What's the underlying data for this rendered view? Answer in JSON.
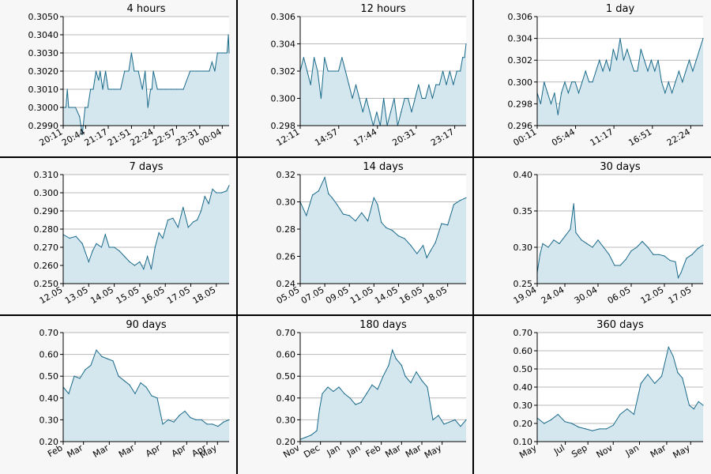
{
  "colors": {
    "line": "#1a6a8a",
    "fill": "#d4e6ee",
    "grid": "#b8b8b8",
    "axis": "#000000",
    "panel_bg": "#f7f7f7",
    "plot_bg": "#ffffff"
  },
  "chart_data": [
    {
      "type": "area",
      "title": "4 hours",
      "ylim": [
        0.299,
        0.305
      ],
      "yticks": [
        0.299,
        0.3,
        0.301,
        0.302,
        0.303,
        0.304,
        0.305
      ],
      "ytick_labels": [
        "0.2990",
        "0.3000",
        "0.3010",
        "0.3020",
        "0.3030",
        "0.3040",
        "0.3050"
      ],
      "xlim": [
        0,
        243
      ],
      "xticks": [
        0,
        33,
        66,
        100,
        133,
        166,
        200,
        233
      ],
      "xtick_labels": [
        "20:11",
        "20:44",
        "21:17",
        "21:51",
        "22:24",
        "22:57",
        "23:31",
        "00:04"
      ],
      "x": [
        0,
        4,
        6,
        8,
        12,
        18,
        24,
        28,
        32,
        36,
        40,
        44,
        46,
        48,
        52,
        54,
        56,
        58,
        62,
        64,
        66,
        70,
        76,
        84,
        90,
        96,
        100,
        104,
        110,
        116,
        120,
        124,
        128,
        130,
        132,
        138,
        144,
        150,
        158,
        166,
        176,
        186,
        196,
        206,
        214,
        218,
        222,
        226,
        232,
        236,
        240,
        242,
        243
      ],
      "values": [
        0.3,
        0.3,
        0.301,
        0.3,
        0.3,
        0.3,
        0.2995,
        0.2985,
        0.3,
        0.3,
        0.301,
        0.301,
        0.3015,
        0.302,
        0.3015,
        0.302,
        0.3015,
        0.301,
        0.302,
        0.3015,
        0.301,
        0.301,
        0.301,
        0.301,
        0.302,
        0.302,
        0.303,
        0.302,
        0.302,
        0.301,
        0.302,
        0.3,
        0.301,
        0.301,
        0.302,
        0.301,
        0.301,
        0.301,
        0.301,
        0.301,
        0.301,
        0.302,
        0.302,
        0.302,
        0.302,
        0.3025,
        0.302,
        0.303,
        0.303,
        0.303,
        0.303,
        0.304,
        0.303
      ]
    },
    {
      "type": "area",
      "title": "12 hours",
      "ylim": [
        0.298,
        0.306
      ],
      "yticks": [
        0.298,
        0.3,
        0.302,
        0.304,
        0.306
      ],
      "ytick_labels": [
        "0.298",
        "0.300",
        "0.302",
        "0.304",
        "0.306"
      ],
      "xlim": [
        0,
        715
      ],
      "xticks": [
        0,
        166,
        333,
        500,
        666
      ],
      "xtick_labels": [
        "12:11",
        "14:57",
        "17:44",
        "20:31",
        "23:17"
      ],
      "x": [
        0,
        15,
        30,
        45,
        60,
        75,
        90,
        105,
        120,
        135,
        150,
        165,
        180,
        195,
        210,
        225,
        240,
        255,
        270,
        285,
        300,
        315,
        330,
        345,
        360,
        375,
        390,
        405,
        420,
        435,
        450,
        465,
        480,
        495,
        510,
        525,
        540,
        555,
        570,
        585,
        600,
        615,
        630,
        645,
        660,
        675,
        690,
        700,
        708,
        715
      ],
      "values": [
        0.302,
        0.303,
        0.302,
        0.301,
        0.303,
        0.302,
        0.3,
        0.303,
        0.302,
        0.302,
        0.302,
        0.302,
        0.303,
        0.302,
        0.301,
        0.3,
        0.301,
        0.3,
        0.299,
        0.3,
        0.299,
        0.298,
        0.299,
        0.298,
        0.3,
        0.298,
        0.299,
        0.3,
        0.298,
        0.299,
        0.3,
        0.3,
        0.299,
        0.3,
        0.301,
        0.3,
        0.3,
        0.301,
        0.3,
        0.301,
        0.301,
        0.302,
        0.301,
        0.302,
        0.301,
        0.302,
        0.302,
        0.303,
        0.303,
        0.304
      ]
    },
    {
      "type": "area",
      "title": "1 day",
      "ylim": [
        0.296,
        0.306
      ],
      "yticks": [
        0.296,
        0.298,
        0.3,
        0.302,
        0.304,
        0.306
      ],
      "ytick_labels": [
        "0.296",
        "0.298",
        "0.300",
        "0.302",
        "0.304",
        "0.306"
      ],
      "xlim": [
        0,
        1440
      ],
      "xticks": [
        0,
        333,
        666,
        1000,
        1333
      ],
      "xtick_labels": [
        "00:11",
        "05:44",
        "11:17",
        "16:51",
        "22:24"
      ],
      "x": [
        0,
        30,
        60,
        90,
        120,
        150,
        180,
        210,
        240,
        270,
        300,
        330,
        360,
        390,
        420,
        450,
        480,
        510,
        540,
        570,
        600,
        630,
        660,
        690,
        720,
        750,
        780,
        810,
        840,
        870,
        900,
        930,
        960,
        990,
        1020,
        1050,
        1080,
        1110,
        1140,
        1170,
        1200,
        1230,
        1260,
        1290,
        1320,
        1350,
        1380,
        1410,
        1440
      ],
      "values": [
        0.299,
        0.298,
        0.3,
        0.299,
        0.298,
        0.299,
        0.297,
        0.299,
        0.3,
        0.299,
        0.3,
        0.3,
        0.299,
        0.3,
        0.301,
        0.3,
        0.3,
        0.301,
        0.302,
        0.301,
        0.302,
        0.301,
        0.303,
        0.302,
        0.304,
        0.302,
        0.303,
        0.302,
        0.301,
        0.301,
        0.303,
        0.302,
        0.301,
        0.302,
        0.301,
        0.302,
        0.3,
        0.299,
        0.3,
        0.299,
        0.3,
        0.301,
        0.3,
        0.301,
        0.302,
        0.301,
        0.302,
        0.303,
        0.304
      ]
    },
    {
      "type": "area",
      "title": "7 days",
      "ylim": [
        0.25,
        0.31
      ],
      "yticks": [
        0.25,
        0.26,
        0.27,
        0.28,
        0.29,
        0.3,
        0.31
      ],
      "ytick_labels": [
        "0.250",
        "0.260",
        "0.270",
        "0.280",
        "0.290",
        "0.300",
        "0.310"
      ],
      "xlim": [
        0,
        6.5
      ],
      "xticks": [
        0,
        1,
        2,
        3,
        4,
        5,
        6
      ],
      "xtick_labels": [
        "12.05",
        "13.05",
        "14.05",
        "15.05",
        "16.05",
        "17.05",
        "18.05"
      ],
      "x": [
        0,
        0.25,
        0.5,
        0.75,
        1.0,
        1.15,
        1.3,
        1.5,
        1.65,
        1.8,
        2.0,
        2.2,
        2.4,
        2.6,
        2.8,
        3.0,
        3.15,
        3.3,
        3.45,
        3.6,
        3.75,
        3.9,
        4.1,
        4.3,
        4.5,
        4.7,
        4.9,
        5.1,
        5.25,
        5.4,
        5.55,
        5.7,
        5.85,
        6.0,
        6.2,
        6.4,
        6.5
      ],
      "values": [
        0.277,
        0.275,
        0.276,
        0.272,
        0.262,
        0.268,
        0.272,
        0.27,
        0.277,
        0.27,
        0.27,
        0.268,
        0.265,
        0.262,
        0.26,
        0.262,
        0.258,
        0.265,
        0.258,
        0.27,
        0.278,
        0.275,
        0.285,
        0.286,
        0.281,
        0.292,
        0.281,
        0.284,
        0.285,
        0.29,
        0.298,
        0.294,
        0.302,
        0.3,
        0.3,
        0.301,
        0.304
      ]
    },
    {
      "type": "area",
      "title": "14 days",
      "ylim": [
        0.24,
        0.32
      ],
      "yticks": [
        0.24,
        0.26,
        0.28,
        0.3,
        0.32
      ],
      "ytick_labels": [
        "0.24",
        "0.26",
        "0.28",
        "0.30",
        "0.32"
      ],
      "xlim": [
        0,
        13.5
      ],
      "xticks": [
        0,
        2,
        4,
        6,
        8,
        10,
        12
      ],
      "xtick_labels": [
        "05.05",
        "07.05",
        "09.05",
        "11.05",
        "14.05",
        "16.05",
        "18.05"
      ],
      "x": [
        0,
        0.5,
        1.0,
        1.5,
        2.0,
        2.3,
        2.6,
        3.0,
        3.5,
        4.0,
        4.5,
        5.0,
        5.5,
        6.0,
        6.3,
        6.6,
        7.0,
        7.5,
        8.0,
        8.5,
        9.0,
        9.5,
        10.0,
        10.3,
        10.6,
        11.0,
        11.5,
        12.0,
        12.5,
        13.0,
        13.5
      ],
      "values": [
        0.3,
        0.29,
        0.305,
        0.308,
        0.318,
        0.306,
        0.303,
        0.298,
        0.291,
        0.29,
        0.286,
        0.292,
        0.286,
        0.303,
        0.298,
        0.285,
        0.281,
        0.279,
        0.275,
        0.273,
        0.268,
        0.262,
        0.268,
        0.259,
        0.264,
        0.27,
        0.284,
        0.283,
        0.298,
        0.301,
        0.303
      ]
    },
    {
      "type": "area",
      "title": "30 days",
      "ylim": [
        0.25,
        0.4
      ],
      "yticks": [
        0.25,
        0.3,
        0.35,
        0.4
      ],
      "ytick_labels": [
        "0.25",
        "0.30",
        "0.35",
        "0.40"
      ],
      "xlim": [
        0,
        30
      ],
      "xticks": [
        0,
        5,
        11,
        17,
        23,
        28
      ],
      "xtick_labels": [
        "19.04",
        "24.04",
        "30.04",
        "06.05",
        "12.05",
        "17.05"
      ],
      "x": [
        0,
        0.5,
        1,
        2,
        3,
        4,
        5,
        6,
        6.6,
        7,
        8,
        9,
        10,
        11,
        12,
        13,
        14,
        15,
        16,
        17,
        18,
        19,
        20,
        21,
        22,
        23,
        24,
        25,
        25.5,
        26,
        27,
        28,
        29,
        30
      ],
      "values": [
        0.265,
        0.29,
        0.305,
        0.3,
        0.31,
        0.305,
        0.315,
        0.325,
        0.36,
        0.32,
        0.31,
        0.305,
        0.3,
        0.31,
        0.3,
        0.29,
        0.275,
        0.275,
        0.283,
        0.295,
        0.3,
        0.308,
        0.3,
        0.29,
        0.29,
        0.288,
        0.282,
        0.28,
        0.258,
        0.265,
        0.285,
        0.29,
        0.298,
        0.303
      ]
    },
    {
      "type": "area",
      "title": "90 days",
      "ylim": [
        0.2,
        0.7
      ],
      "yticks": [
        0.2,
        0.3,
        0.4,
        0.5,
        0.6,
        0.7
      ],
      "ytick_labels": [
        "0.20",
        "0.30",
        "0.40",
        "0.50",
        "0.60",
        "0.70"
      ],
      "xlim": [
        0,
        90
      ],
      "xticks": [
        0,
        11,
        25,
        39,
        53,
        67,
        78
      ],
      "xtick_labels": [
        "Feb",
        "Mar",
        "Mar",
        "Mar",
        "Apr",
        "Apr",
        "Apr"
      ],
      "xtick_labels_extra": [
        "May"
      ],
      "x": [
        0,
        3,
        6,
        9,
        12,
        15,
        18,
        21,
        24,
        27,
        30,
        33,
        36,
        39,
        42,
        45,
        48,
        51,
        54,
        57,
        60,
        63,
        66,
        69,
        72,
        75,
        78,
        81,
        84,
        87,
        90
      ],
      "values": [
        0.45,
        0.42,
        0.5,
        0.49,
        0.53,
        0.55,
        0.62,
        0.59,
        0.58,
        0.57,
        0.5,
        0.48,
        0.46,
        0.42,
        0.47,
        0.45,
        0.41,
        0.4,
        0.28,
        0.3,
        0.29,
        0.32,
        0.34,
        0.31,
        0.3,
        0.3,
        0.28,
        0.28,
        0.27,
        0.29,
        0.3
      ]
    },
    {
      "type": "area",
      "title": "180 days",
      "ylim": [
        0.2,
        0.7
      ],
      "yticks": [
        0.2,
        0.3,
        0.4,
        0.5,
        0.6,
        0.7
      ],
      "ytick_labels": [
        "0.20",
        "0.30",
        "0.40",
        "0.50",
        "0.60",
        "0.70"
      ],
      "xlim": [
        0,
        180
      ],
      "xticks": [
        0,
        22,
        44,
        66,
        88,
        110,
        132,
        154
      ],
      "xtick_labels": [
        "Nov",
        "Dec",
        "Jan",
        "Jan",
        "Feb",
        "Mar",
        "Mar",
        "May"
      ],
      "x": [
        0,
        6,
        12,
        18,
        21,
        24,
        30,
        36,
        42,
        48,
        54,
        60,
        66,
        72,
        78,
        84,
        90,
        96,
        100,
        104,
        110,
        114,
        120,
        126,
        132,
        138,
        144,
        150,
        156,
        162,
        168,
        174,
        180
      ],
      "values": [
        0.21,
        0.22,
        0.23,
        0.25,
        0.35,
        0.42,
        0.45,
        0.43,
        0.45,
        0.42,
        0.4,
        0.37,
        0.38,
        0.42,
        0.46,
        0.44,
        0.5,
        0.55,
        0.62,
        0.58,
        0.55,
        0.5,
        0.47,
        0.52,
        0.48,
        0.45,
        0.3,
        0.32,
        0.28,
        0.29,
        0.3,
        0.27,
        0.3
      ]
    },
    {
      "type": "area",
      "title": "360 days",
      "ylim": [
        0.1,
        0.7
      ],
      "yticks": [
        0.1,
        0.2,
        0.3,
        0.4,
        0.5,
        0.6,
        0.7
      ],
      "ytick_labels": [
        "0.10",
        "0.20",
        "0.30",
        "0.40",
        "0.50",
        "0.60",
        "0.70"
      ],
      "xlim": [
        0,
        360
      ],
      "xticks": [
        0,
        61,
        110,
        165,
        222,
        281,
        333
      ],
      "xtick_labels": [
        "May",
        "Jul",
        "Sep",
        "Nov",
        "Jan",
        "Mar",
        "May"
      ],
      "x": [
        0,
        15,
        30,
        45,
        60,
        75,
        90,
        105,
        120,
        135,
        150,
        165,
        180,
        195,
        210,
        225,
        240,
        255,
        270,
        285,
        295,
        305,
        315,
        330,
        340,
        350,
        360
      ],
      "values": [
        0.23,
        0.2,
        0.22,
        0.25,
        0.21,
        0.2,
        0.18,
        0.17,
        0.16,
        0.17,
        0.17,
        0.19,
        0.25,
        0.28,
        0.25,
        0.42,
        0.47,
        0.42,
        0.46,
        0.62,
        0.57,
        0.48,
        0.45,
        0.3,
        0.28,
        0.32,
        0.3
      ]
    }
  ]
}
